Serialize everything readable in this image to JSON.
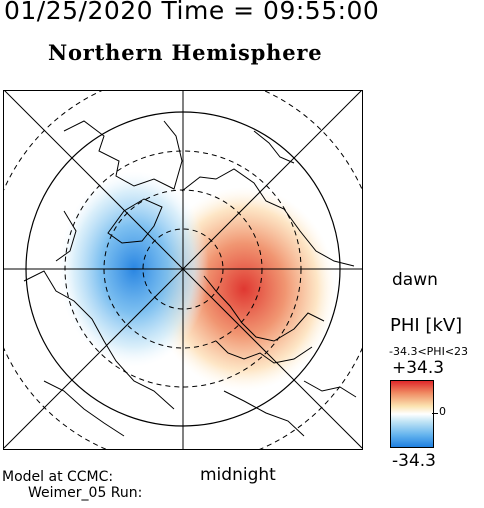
{
  "header": {
    "datetime": "01/25/2020 Time = 09:55:00",
    "title": "Northern Hemisphere"
  },
  "map": {
    "projection": "polar-north",
    "orientation": {
      "right": "dawn",
      "bottom": "midnight"
    }
  },
  "labels": {
    "dawn": "dawn",
    "midnight": "midnight"
  },
  "colorbar": {
    "label": "PHI [kV]",
    "range_text": "-34.3<PHI<23",
    "max_label": "+34.3",
    "zero_label": "0",
    "min_label": "-34.3",
    "colors": {
      "max": "#e0282a",
      "zero": "#ffffff",
      "min": "#1e7fe0"
    }
  },
  "model": {
    "line1": "Model at CCMC:",
    "line2": "Weimer_05 Run:"
  }
}
